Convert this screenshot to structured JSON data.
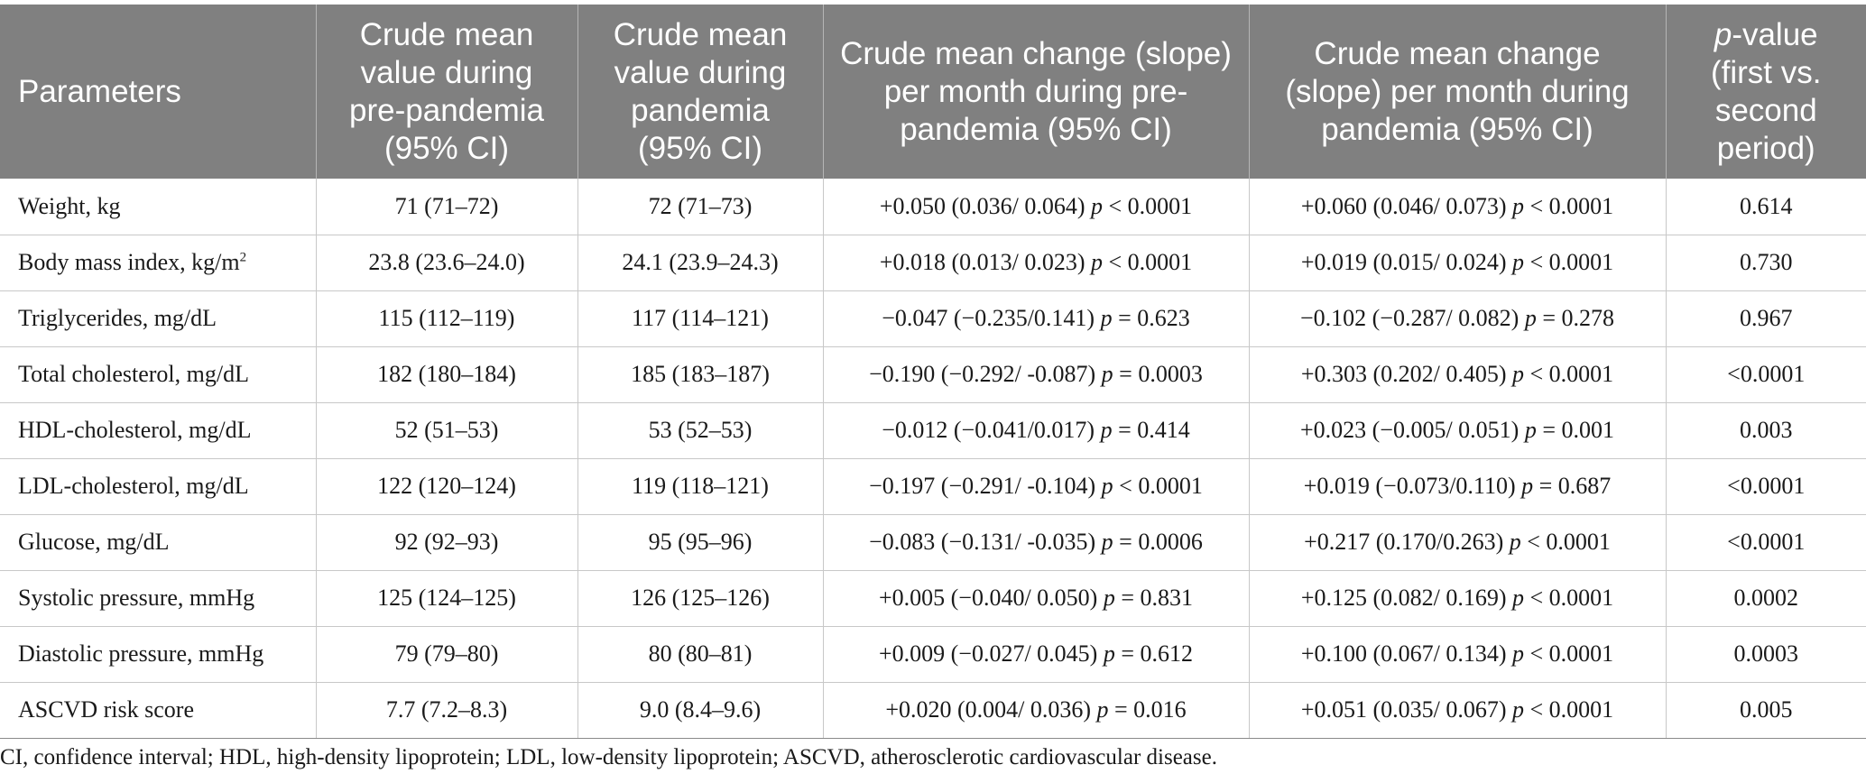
{
  "table": {
    "headers": {
      "parameters": "Parameters",
      "crude_mean_pre": "Crude mean value during pre-pandemia (95% CI)",
      "crude_mean_pandemia": "Crude mean value during pandemia (95% CI)",
      "slope_pre": "Crude mean change (slope) per month during pre-pandemia (95% CI)",
      "slope_pandemia": "Crude mean change (slope) per month during pandemia (95% CI)",
      "pvalue_italic": "p",
      "pvalue_rest": "-value (first vs. second period)"
    },
    "rows": [
      {
        "param": "Weight, kg",
        "param_sup": "",
        "mean_pre": "71 (71–72)",
        "mean_pand": "72 (71–73)",
        "slope_pre": "+0.050 (0.036/ 0.064)",
        "slope_pre_p": "< 0.0001",
        "slope_pand": "+0.060 (0.046/ 0.073)",
        "slope_pand_p": "< 0.0001",
        "pvalue": "0.614"
      },
      {
        "param": "Body mass index, kg/m",
        "param_sup": "2",
        "mean_pre": "23.8 (23.6–24.0)",
        "mean_pand": "24.1 (23.9–24.3)",
        "slope_pre": "+0.018 (0.013/ 0.023)",
        "slope_pre_p": "< 0.0001",
        "slope_pand": "+0.019 (0.015/ 0.024)",
        "slope_pand_p": "< 0.0001",
        "pvalue": "0.730"
      },
      {
        "param": "Triglycerides, mg/dL",
        "param_sup": "",
        "mean_pre": "115 (112–119)",
        "mean_pand": "117 (114–121)",
        "slope_pre": "−0.047 (−0.235/0.141)",
        "slope_pre_p": "= 0.623",
        "slope_pand": "−0.102 (−0.287/ 0.082)",
        "slope_pand_p": "= 0.278",
        "pvalue": "0.967"
      },
      {
        "param": "Total cholesterol, mg/dL",
        "param_sup": "",
        "mean_pre": "182 (180–184)",
        "mean_pand": "185 (183–187)",
        "slope_pre": "−0.190 (−0.292/ -0.087)",
        "slope_pre_p": "= 0.0003",
        "slope_pand": "+0.303 (0.202/ 0.405)",
        "slope_pand_p": "< 0.0001",
        "pvalue": "<0.0001"
      },
      {
        "param": "HDL-cholesterol, mg/dL",
        "param_sup": "",
        "mean_pre": "52 (51–53)",
        "mean_pand": "53 (52–53)",
        "slope_pre": "−0.012 (−0.041/0.017)",
        "slope_pre_p": "= 0.414",
        "slope_pand": "+0.023 (−0.005/ 0.051)",
        "slope_pand_p": "= 0.001",
        "pvalue": "0.003"
      },
      {
        "param": "LDL-cholesterol, mg/dL",
        "param_sup": "",
        "mean_pre": "122 (120–124)",
        "mean_pand": "119 (118–121)",
        "slope_pre": "−0.197 (−0.291/ -0.104)",
        "slope_pre_p": "< 0.0001",
        "slope_pand": "+0.019 (−0.073/0.110)",
        "slope_pand_p": "= 0.687",
        "pvalue": "<0.0001"
      },
      {
        "param": "Glucose, mg/dL",
        "param_sup": "",
        "mean_pre": "92 (92–93)",
        "mean_pand": "95 (95–96)",
        "slope_pre": "−0.083 (−0.131/ -0.035)",
        "slope_pre_p": "= 0.0006",
        "slope_pand": "+0.217 (0.170/0.263)",
        "slope_pand_p": "< 0.0001",
        "pvalue": "<0.0001"
      },
      {
        "param": "Systolic pressure, mmHg",
        "param_sup": "",
        "mean_pre": "125 (124–125)",
        "mean_pand": "126 (125–126)",
        "slope_pre": "+0.005 (−0.040/ 0.050)",
        "slope_pre_p": "= 0.831",
        "slope_pand": "+0.125 (0.082/ 0.169)",
        "slope_pand_p": "< 0.0001",
        "pvalue": "0.0002"
      },
      {
        "param": "Diastolic pressure, mmHg",
        "param_sup": "",
        "mean_pre": "79 (79–80)",
        "mean_pand": "80 (80–81)",
        "slope_pre": "+0.009 (−0.027/ 0.045)",
        "slope_pre_p": "= 0.612",
        "slope_pand": "+0.100 (0.067/ 0.134)",
        "slope_pand_p": "< 0.0001",
        "pvalue": "0.0003"
      },
      {
        "param": "ASCVD risk score",
        "param_sup": "",
        "mean_pre": "7.7 (7.2–8.3)",
        "mean_pand": "9.0 (8.4–9.6)",
        "slope_pre": "+0.020 (0.004/ 0.036)",
        "slope_pre_p": "= 0.016",
        "slope_pand": "+0.051 (0.035/ 0.067)",
        "slope_pand_p": "< 0.0001",
        "pvalue": "0.005"
      }
    ],
    "p_symbol": "p"
  },
  "footnote": "CI, confidence interval; HDL, high-density lipoprotein; LDL, low-density lipoprotein; ASCVD, atherosclerotic cardiovascular disease."
}
